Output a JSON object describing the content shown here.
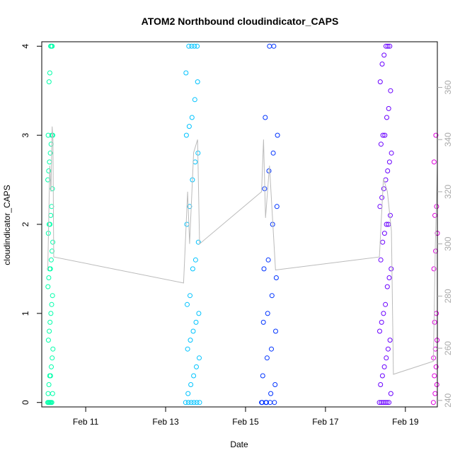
{
  "chart_data": {
    "type": "scatter",
    "title": "ATOM2 Northbound cloudindicator_CAPS",
    "xlabel": "Date",
    "ylabel": "cloudindicator_CAPS",
    "xlim": [
      9.9,
      19.8
    ],
    "ylim": [
      -0.05,
      4.05
    ],
    "y2lim": [
      237.5,
      377.5
    ],
    "x_ticks": [
      11,
      13,
      15,
      17,
      19
    ],
    "x_tick_labels": [
      "Feb 11",
      "Feb 13",
      "Feb 15",
      "Feb 17",
      "Feb 19"
    ],
    "y_ticks": [
      0,
      1,
      2,
      3,
      4
    ],
    "y_tick_labels": [
      "0",
      "1",
      "2",
      "3",
      "4"
    ],
    "y2_ticks": [
      240,
      260,
      280,
      300,
      320,
      340,
      360
    ],
    "y2_tick_labels": [
      "240",
      "260",
      "280",
      "300",
      "320",
      "340",
      "360"
    ],
    "colors": {
      "group1": "#00ffaa",
      "group2": "#00c3ff",
      "group3": "#0033ff",
      "group4": "#6a00ff",
      "group5": "#dd00dd",
      "trace": "#bbbbbb",
      "axis": "#000000",
      "secondary_axis": "#aaaaaa"
    },
    "series": [
      {
        "name": "group1",
        "color_key": "group1",
        "x_range": [
          10.05,
          10.18
        ],
        "values": [
          0,
          0,
          0,
          0,
          0,
          0,
          0.1,
          0.1,
          0.2,
          0.3,
          0.3,
          0.4,
          0.5,
          0.6,
          0.7,
          0.8,
          0.9,
          1.0,
          1.1,
          1.2,
          1.3,
          1.4,
          1.5,
          1.5,
          1.6,
          1.7,
          1.8,
          1.9,
          2.0,
          2.0,
          2.1,
          2.2,
          2.4,
          2.5,
          2.6,
          2.7,
          2.8,
          2.9,
          3.0,
          3.0,
          3.0,
          3.6,
          3.7,
          4.0,
          4.0,
          4.0
        ]
      },
      {
        "name": "group2",
        "color_key": "group2",
        "x_range": [
          13.5,
          13.85
        ],
        "values": [
          0,
          0,
          0,
          0,
          0,
          0,
          0.1,
          0.2,
          0.3,
          0.4,
          0.5,
          0.6,
          0.7,
          0.8,
          0.9,
          1.0,
          1.1,
          1.2,
          1.5,
          1.6,
          1.8,
          2.0,
          2.2,
          2.5,
          2.7,
          2.8,
          3.0,
          3.1,
          3.2,
          3.4,
          3.6,
          3.7,
          4.0,
          4.0,
          4.0,
          4.0
        ]
      },
      {
        "name": "group3",
        "color_key": "group3",
        "x_range": [
          15.4,
          15.8
        ],
        "values": [
          0,
          0,
          0,
          0,
          0,
          0,
          0.1,
          0.2,
          0.3,
          0.5,
          0.6,
          0.8,
          0.9,
          1.0,
          1.2,
          1.4,
          1.5,
          1.6,
          2.0,
          2.2,
          2.4,
          2.6,
          2.8,
          3.0,
          3.2,
          4.0,
          4.0
        ]
      },
      {
        "name": "group4",
        "color_key": "group4",
        "x_range": [
          18.35,
          18.65
        ],
        "values": [
          0,
          0,
          0,
          0,
          0,
          0,
          0.1,
          0.2,
          0.3,
          0.4,
          0.5,
          0.6,
          0.7,
          0.8,
          0.9,
          1.0,
          1.1,
          1.3,
          1.4,
          1.5,
          1.6,
          1.8,
          1.9,
          2.0,
          2.0,
          2.1,
          2.2,
          2.3,
          2.4,
          2.5,
          2.6,
          2.7,
          2.8,
          2.9,
          3.0,
          3.0,
          3.2,
          3.3,
          3.5,
          3.6,
          3.8,
          3.9,
          4.0,
          4.0,
          4.0
        ]
      },
      {
        "name": "group5",
        "color_key": "group5",
        "x_range": [
          19.7,
          19.8
        ],
        "values": [
          0,
          0.1,
          0.2,
          0.3,
          0.4,
          0.5,
          0.6,
          0.7,
          0.9,
          1.0,
          1.5,
          1.7,
          1.9,
          2.1,
          2.2,
          2.7,
          3.0
        ]
      }
    ],
    "trace_secondary": [
      [
        10.05,
        290
      ],
      [
        10.1,
        330
      ],
      [
        10.13,
        320
      ],
      [
        10.16,
        345
      ],
      [
        10.18,
        340
      ],
      [
        10.2,
        295
      ],
      [
        13.45,
        285
      ],
      [
        13.55,
        320
      ],
      [
        13.6,
        300
      ],
      [
        13.7,
        335
      ],
      [
        13.8,
        340
      ],
      [
        13.85,
        300
      ],
      [
        15.4,
        320
      ],
      [
        15.45,
        340
      ],
      [
        15.5,
        310
      ],
      [
        15.6,
        330
      ],
      [
        15.75,
        290
      ],
      [
        18.35,
        295
      ],
      [
        18.45,
        325
      ],
      [
        18.55,
        320
      ],
      [
        18.65,
        305
      ],
      [
        18.7,
        250
      ],
      [
        19.7,
        255
      ],
      [
        19.75,
        300
      ],
      [
        19.8,
        330
      ]
    ]
  }
}
